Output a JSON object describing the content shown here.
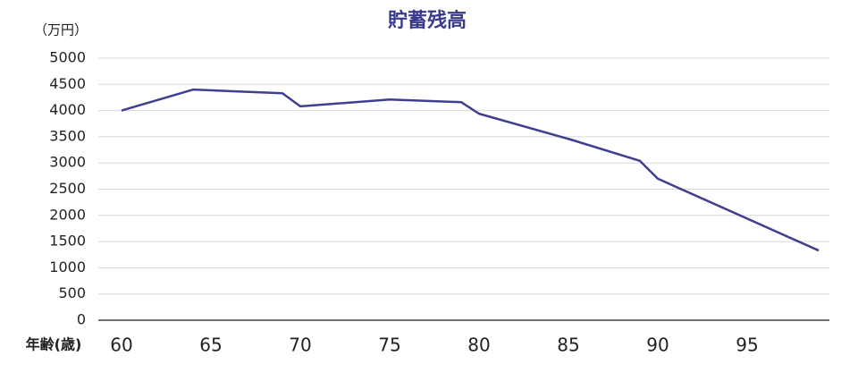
{
  "chart_data": {
    "type": "line",
    "title": "貯蓄残高",
    "y_unit": "（万円）",
    "x_label": "年齢(歳)",
    "x": [
      60,
      64,
      69,
      70,
      75,
      79,
      80,
      85,
      89,
      90,
      99
    ],
    "values": [
      4000,
      4400,
      4330,
      4080,
      4210,
      4160,
      3940,
      3460,
      3040,
      2700,
      1330
    ],
    "color": "#3f3f91",
    "xlim": [
      58.7,
      99.6
    ],
    "xticks": [
      60,
      65,
      70,
      75,
      80,
      85,
      90,
      95
    ],
    "ylim": [
      0,
      5000
    ],
    "yticks": [
      0,
      500,
      1000,
      1500,
      2000,
      2500,
      3000,
      3500,
      4000,
      4500,
      5000
    ],
    "grid": true
  }
}
